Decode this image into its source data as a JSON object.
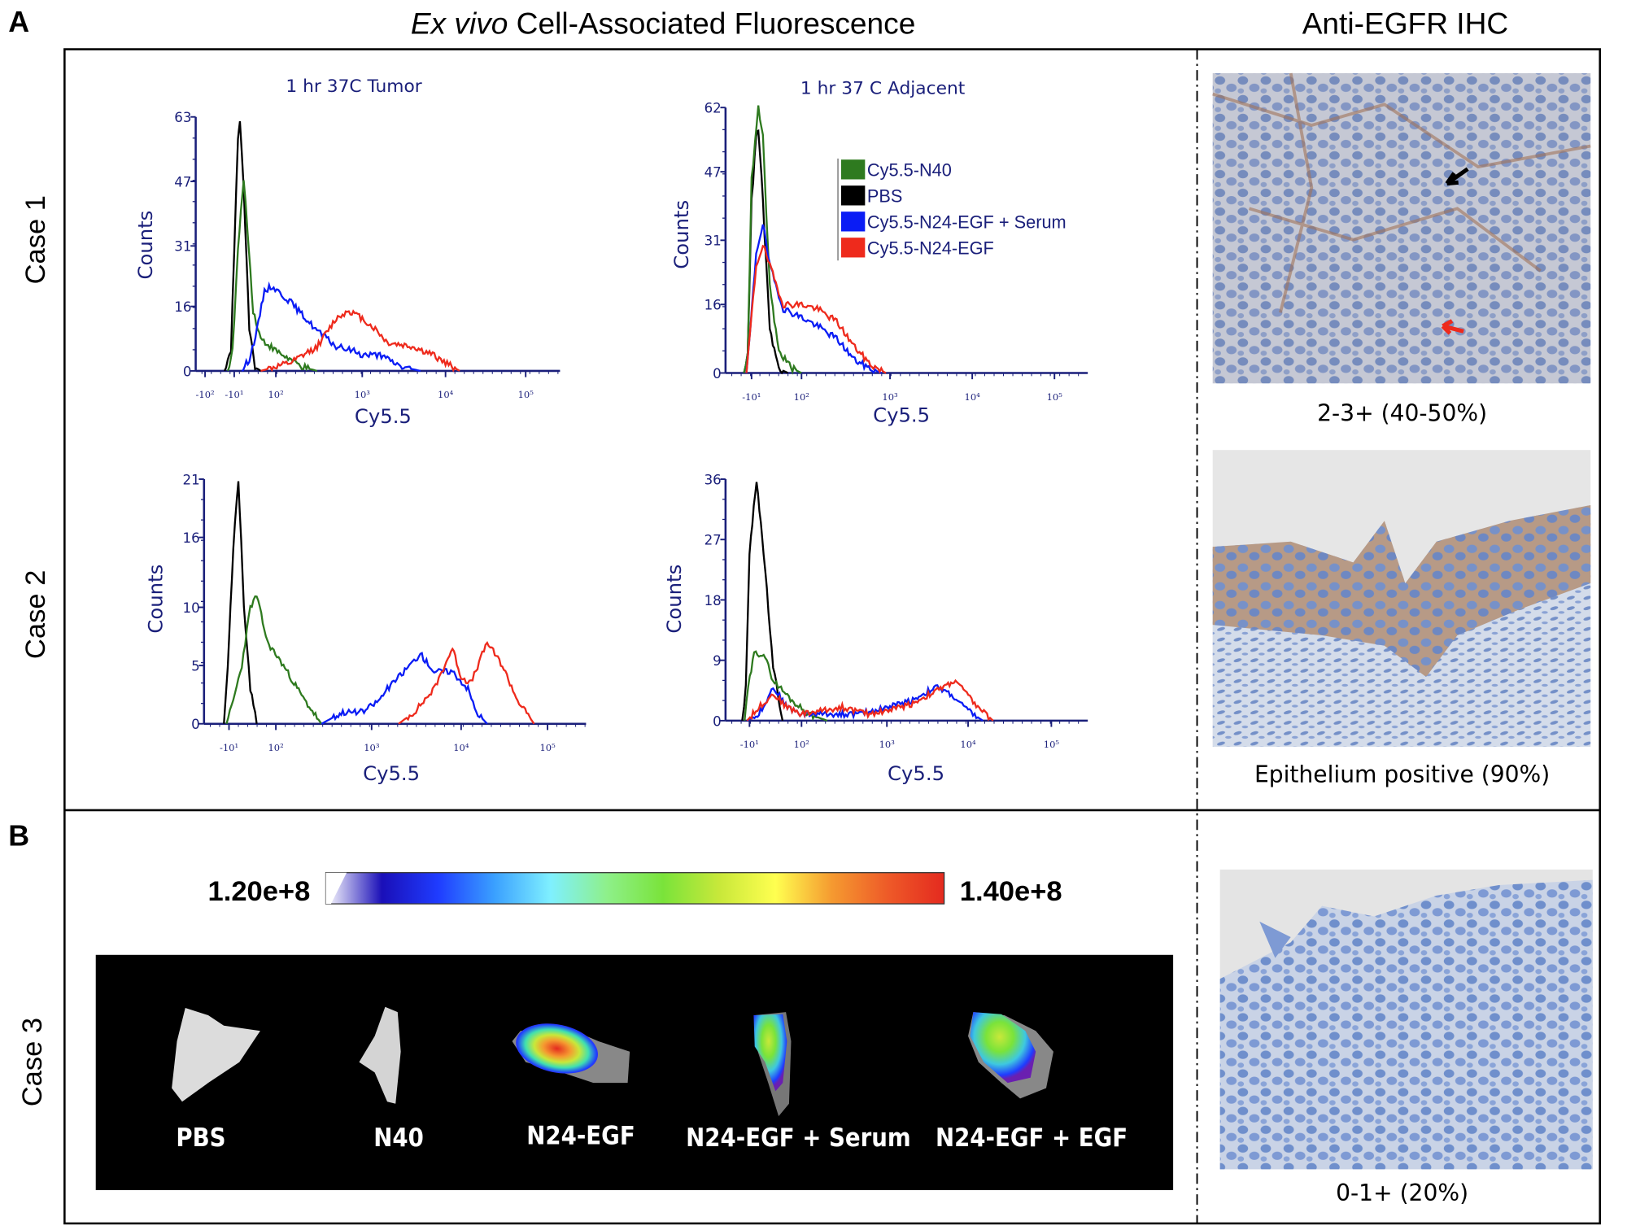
{
  "panel_labels": {
    "a": "A",
    "b": "B"
  },
  "header": {
    "title_italic": "Ex vivo",
    "title_rest": " Cell-Associated Fluorescence",
    "ihc_title": "Anti-EGFR IHC"
  },
  "cases": [
    "Case 1",
    "Case 2",
    "Case 3"
  ],
  "legend": [
    {
      "name": "Cy5.5-N40",
      "color": "#2e7a1f"
    },
    {
      "name": "PBS",
      "color": "#000000"
    },
    {
      "name": "Cy5.5-N24-EGF + Serum",
      "color": "#0a1cf5"
    },
    {
      "name": "Cy5.5-N24-EGF",
      "color": "#ee2a1c"
    }
  ],
  "chart_data": [
    {
      "type": "line",
      "title": "1 hr 37C Tumor",
      "xlabel": "Cy5.5",
      "ylabel": "Counts",
      "x_scale": "biexponential",
      "ylim": [
        0,
        63
      ],
      "yticks": [
        "0",
        "16",
        "31",
        "47",
        "63"
      ],
      "xticks": [
        "-10²",
        "-10¹",
        "10²",
        "10³",
        "10⁴",
        "10⁵"
      ],
      "series": [
        {
          "name": "PBS",
          "color": "#000000",
          "points": [
            [
              -40,
              0
            ],
            [
              -20,
              5
            ],
            [
              -10,
              30
            ],
            [
              0,
              58
            ],
            [
              5,
              62
            ],
            [
              15,
              45
            ],
            [
              30,
              10
            ],
            [
              45,
              1
            ],
            [
              60,
              0
            ]
          ]
        },
        {
          "name": "Cy5.5-N40",
          "color": "#2e7a1f",
          "points": [
            [
              -30,
              0
            ],
            [
              -15,
              5
            ],
            [
              0,
              30
            ],
            [
              15,
              48
            ],
            [
              25,
              35
            ],
            [
              40,
              15
            ],
            [
              60,
              8
            ],
            [
              100,
              5
            ],
            [
              200,
              1
            ],
            [
              300,
              0
            ]
          ]
        },
        {
          "name": "Cy5.5-N24-EGF + Serum",
          "color": "#0a1cf5",
          "points": [
            [
              10,
              0
            ],
            [
              30,
              3
            ],
            [
              50,
              10
            ],
            [
              70,
              20
            ],
            [
              90,
              21
            ],
            [
              150,
              17
            ],
            [
              200,
              14
            ],
            [
              300,
              10
            ],
            [
              500,
              6
            ],
            [
              800,
              5
            ],
            [
              1000,
              4
            ],
            [
              1500,
              4
            ],
            [
              2000,
              3
            ],
            [
              3000,
              1
            ],
            [
              5000,
              0
            ]
          ]
        },
        {
          "name": "Cy5.5-N24-EGF",
          "color": "#ee2a1c",
          "points": [
            [
              60,
              0
            ],
            [
              150,
              2
            ],
            [
              300,
              6
            ],
            [
              500,
              13
            ],
            [
              700,
              15
            ],
            [
              1000,
              13
            ],
            [
              1500,
              10
            ],
            [
              2000,
              7
            ],
            [
              4000,
              6
            ],
            [
              7000,
              4
            ],
            [
              10000,
              2
            ],
            [
              15000,
              0
            ]
          ]
        }
      ]
    },
    {
      "type": "line",
      "title": "1 hr 37 C Adjacent",
      "xlabel": "Cy5.5",
      "ylabel": "Counts",
      "x_scale": "biexponential",
      "ylim": [
        0,
        62
      ],
      "yticks": [
        "0",
        "16",
        "31",
        "47",
        "62"
      ],
      "xticks": [
        "-10¹",
        "10²",
        "10³",
        "10⁴",
        "10⁵"
      ],
      "legend_position": "top-right",
      "series": [
        {
          "name": "PBS",
          "color": "#000000",
          "points": [
            [
              -40,
              0
            ],
            [
              -25,
              5
            ],
            [
              -10,
              40
            ],
            [
              0,
              55
            ],
            [
              5,
              57
            ],
            [
              15,
              40
            ],
            [
              30,
              10
            ],
            [
              50,
              1
            ],
            [
              70,
              0
            ]
          ]
        },
        {
          "name": "Cy5.5-N40",
          "color": "#2e7a1f",
          "points": [
            [
              -40,
              0
            ],
            [
              -25,
              5
            ],
            [
              -10,
              45
            ],
            [
              5,
              62
            ],
            [
              15,
              55
            ],
            [
              30,
              20
            ],
            [
              50,
              5
            ],
            [
              80,
              1
            ],
            [
              100,
              0
            ]
          ]
        },
        {
          "name": "Cy5.5-N24-EGF + Serum",
          "color": "#0a1cf5",
          "points": [
            [
              -30,
              0
            ],
            [
              -15,
              10
            ],
            [
              0,
              28
            ],
            [
              15,
              35
            ],
            [
              30,
              25
            ],
            [
              60,
              15
            ],
            [
              100,
              13
            ],
            [
              150,
              11
            ],
            [
              250,
              8
            ],
            [
              400,
              3
            ],
            [
              600,
              1
            ],
            [
              800,
              0
            ]
          ]
        },
        {
          "name": "Cy5.5-N24-EGF",
          "color": "#ee2a1c",
          "points": [
            [
              -30,
              0
            ],
            [
              -15,
              10
            ],
            [
              0,
              25
            ],
            [
              15,
              30
            ],
            [
              30,
              25
            ],
            [
              60,
              16
            ],
            [
              100,
              16
            ],
            [
              150,
              15
            ],
            [
              250,
              12
            ],
            [
              400,
              6
            ],
            [
              600,
              2
            ],
            [
              900,
              0
            ]
          ]
        }
      ]
    },
    {
      "type": "line",
      "title": "",
      "xlabel": "Cy5.5",
      "ylabel": "Counts",
      "x_scale": "biexponential",
      "ylim": [
        0,
        21
      ],
      "yticks": [
        "0",
        "5",
        "10",
        "16",
        "21"
      ],
      "xticks": [
        "-10¹",
        "10²",
        "10³",
        "10⁴",
        "10⁵"
      ],
      "series": [
        {
          "name": "PBS",
          "color": "#000000",
          "points": [
            [
              -30,
              0
            ],
            [
              -15,
              5
            ],
            [
              0,
              15
            ],
            [
              12,
              21
            ],
            [
              25,
              10
            ],
            [
              40,
              3
            ],
            [
              55,
              0
            ]
          ]
        },
        {
          "name": "Cy5.5-N40",
          "color": "#2e7a1f",
          "points": [
            [
              -20,
              0
            ],
            [
              0,
              2
            ],
            [
              20,
              5
            ],
            [
              40,
              10
            ],
            [
              55,
              11
            ],
            [
              80,
              7
            ],
            [
              120,
              5
            ],
            [
              200,
              2
            ],
            [
              300,
              0
            ]
          ]
        },
        {
          "name": "Cy5.5-N24-EGF + Serum",
          "color": "#0a1cf5",
          "points": [
            [
              300,
              0
            ],
            [
              500,
              1
            ],
            [
              800,
              1
            ],
            [
              1200,
              2
            ],
            [
              1500,
              3
            ],
            [
              2000,
              4
            ],
            [
              3500,
              6
            ],
            [
              5000,
              4.5
            ],
            [
              8000,
              4.5
            ],
            [
              12000,
              3
            ],
            [
              15000,
              1
            ],
            [
              20000,
              0
            ]
          ]
        },
        {
          "name": "Cy5.5-N24-EGF",
          "color": "#ee2a1c",
          "points": [
            [
              2000,
              0
            ],
            [
              3000,
              1
            ],
            [
              5000,
              3
            ],
            [
              8000,
              6.5
            ],
            [
              10000,
              4
            ],
            [
              13000,
              3.5
            ],
            [
              20000,
              7
            ],
            [
              30000,
              5
            ],
            [
              45000,
              2
            ],
            [
              70000,
              0
            ]
          ]
        }
      ]
    },
    {
      "type": "line",
      "title": "",
      "xlabel": "Cy5.5",
      "ylabel": "Counts",
      "x_scale": "biexponential",
      "ylim": [
        0,
        36
      ],
      "yticks": [
        "0",
        "9",
        "18",
        "27",
        "36"
      ],
      "xticks": [
        "-10¹",
        "10²",
        "10³",
        "10⁴",
        "10⁵"
      ],
      "series": [
        {
          "name": "PBS",
          "color": "#000000",
          "points": [
            [
              -40,
              0
            ],
            [
              -25,
              5
            ],
            [
              -10,
              25
            ],
            [
              5,
              36
            ],
            [
              20,
              25
            ],
            [
              40,
              8
            ],
            [
              60,
              0
            ]
          ]
        },
        {
          "name": "Cy5.5-N40",
          "color": "#2e7a1f",
          "points": [
            [
              -30,
              0
            ],
            [
              -15,
              5
            ],
            [
              0,
              10
            ],
            [
              20,
              10
            ],
            [
              40,
              6
            ],
            [
              80,
              3
            ],
            [
              120,
              1
            ],
            [
              200,
              0
            ]
          ]
        },
        {
          "name": "Cy5.5-N24-EGF + Serum",
          "color": "#0a1cf5",
          "points": [
            [
              -20,
              0
            ],
            [
              10,
              1
            ],
            [
              40,
              5
            ],
            [
              70,
              2
            ],
            [
              100,
              1
            ],
            [
              200,
              1
            ],
            [
              500,
              1
            ],
            [
              1000,
              2
            ],
            [
              2000,
              3
            ],
            [
              4000,
              5
            ],
            [
              6000,
              4
            ],
            [
              10000,
              1.5
            ],
            [
              15000,
              0
            ]
          ]
        },
        {
          "name": "Cy5.5-N24-EGF",
          "color": "#ee2a1c",
          "points": [
            [
              -20,
              0
            ],
            [
              10,
              2
            ],
            [
              40,
              4
            ],
            [
              70,
              2
            ],
            [
              100,
              1
            ],
            [
              300,
              2
            ],
            [
              600,
              1
            ],
            [
              1000,
              1.5
            ],
            [
              2000,
              2.5
            ],
            [
              5000,
              5
            ],
            [
              7000,
              6
            ],
            [
              12000,
              2.5
            ],
            [
              20000,
              0
            ]
          ]
        }
      ]
    }
  ],
  "ihc": [
    {
      "caption": "2-3+ (40-50%)"
    },
    {
      "caption": "Epithelium positive (90%)"
    },
    {
      "caption": "0-1+ (20%)"
    }
  ],
  "imaging": {
    "colorbar": {
      "min_label": "1.20e+8",
      "max_label": "1.40e+8",
      "colors": [
        "#ffffff",
        "#1a0fb8",
        "#1f3cff",
        "#3aa0ff",
        "#7ff0ff",
        "#8ef08a",
        "#7ae33a",
        "#c8e83a",
        "#ffff50",
        "#f59a30",
        "#ee5a28",
        "#e42a1f"
      ]
    },
    "samples": [
      {
        "label": "PBS",
        "signal": "none"
      },
      {
        "label": "N40",
        "signal": "none"
      },
      {
        "label": "N24-EGF",
        "signal": "high"
      },
      {
        "label": "N24-EGF + Serum",
        "signal": "medium"
      },
      {
        "label": "N24-EGF + EGF",
        "signal": "medium"
      }
    ]
  }
}
